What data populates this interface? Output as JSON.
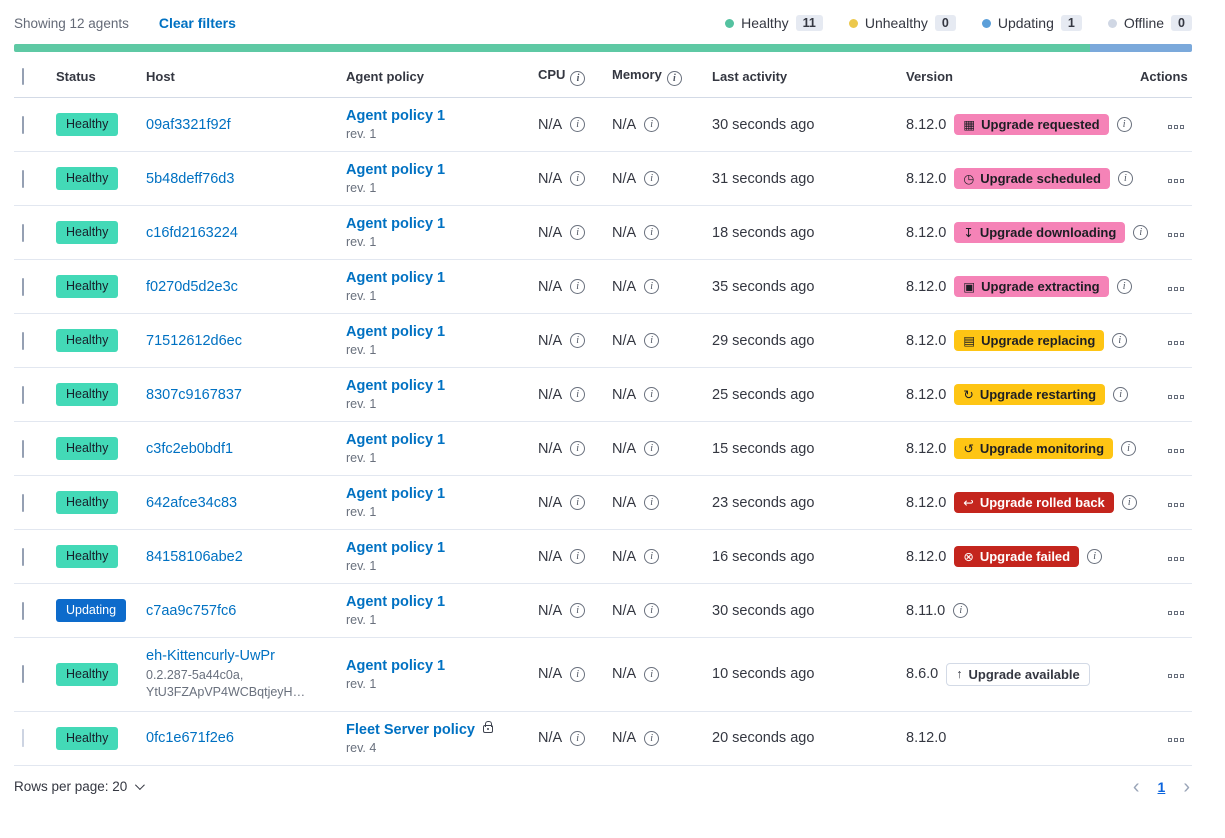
{
  "toolbar": {
    "showing": "Showing 12 agents",
    "clear_filters": "Clear filters",
    "legend": [
      {
        "label": "Healthy",
        "count": "11",
        "color": "#54c2a0"
      },
      {
        "label": "Unhealthy",
        "count": "0",
        "color": "#ecc84c"
      },
      {
        "label": "Updating",
        "count": "1",
        "color": "#5b9fd9"
      },
      {
        "label": "Offline",
        "count": "0",
        "color": "#d0d7e4"
      }
    ]
  },
  "healthbar": {
    "segments": [
      {
        "color": "#5ec9a4",
        "pct": 91.3
      },
      {
        "color": "#7ba9db",
        "pct": 8.7
      }
    ]
  },
  "icons": {
    "calendar": "▦",
    "clock": "◷",
    "download": "↧",
    "package": "▣",
    "document": "▤",
    "refresh": "↻",
    "inspect": "↺",
    "return": "↩",
    "cross": "⊗",
    "up": "↑",
    "info": "i"
  },
  "table": {
    "headers": {
      "status": "Status",
      "host": "Host",
      "policy": "Agent policy",
      "cpu": "CPU",
      "memory": "Memory",
      "last_activity": "Last activity",
      "version": "Version",
      "actions": "Actions"
    },
    "rows": [
      {
        "status": "Healthy",
        "status_type": "healthy",
        "host": "09af3321f92f",
        "policy": "Agent policy 1",
        "policy_rev": "rev. 1",
        "policy_locked": false,
        "cpu": "N/A",
        "memory": "N/A",
        "last_activity": "30 seconds ago",
        "version": "8.12.0",
        "upgrade": {
          "label": "Upgrade requested",
          "type": "pink",
          "icon": "calendar"
        },
        "has_info": true,
        "checkbox_disabled": false
      },
      {
        "status": "Healthy",
        "status_type": "healthy",
        "host": "5b48deff76d3",
        "policy": "Agent policy 1",
        "policy_rev": "rev. 1",
        "policy_locked": false,
        "cpu": "N/A",
        "memory": "N/A",
        "last_activity": "31 seconds ago",
        "version": "8.12.0",
        "upgrade": {
          "label": "Upgrade scheduled",
          "type": "pink",
          "icon": "clock"
        },
        "has_info": true,
        "checkbox_disabled": false
      },
      {
        "status": "Healthy",
        "status_type": "healthy",
        "host": "c16fd2163224",
        "policy": "Agent policy 1",
        "policy_rev": "rev. 1",
        "policy_locked": false,
        "cpu": "N/A",
        "memory": "N/A",
        "last_activity": "18 seconds ago",
        "version": "8.12.0",
        "upgrade": {
          "label": "Upgrade downloading",
          "type": "pink",
          "icon": "download"
        },
        "has_info": true,
        "checkbox_disabled": false
      },
      {
        "status": "Healthy",
        "status_type": "healthy",
        "host": "f0270d5d2e3c",
        "policy": "Agent policy 1",
        "policy_rev": "rev. 1",
        "policy_locked": false,
        "cpu": "N/A",
        "memory": "N/A",
        "last_activity": "35 seconds ago",
        "version": "8.12.0",
        "upgrade": {
          "label": "Upgrade extracting",
          "type": "pink",
          "icon": "package"
        },
        "has_info": true,
        "checkbox_disabled": false
      },
      {
        "status": "Healthy",
        "status_type": "healthy",
        "host": "71512612d6ec",
        "policy": "Agent policy 1",
        "policy_rev": "rev. 1",
        "policy_locked": false,
        "cpu": "N/A",
        "memory": "N/A",
        "last_activity": "29 seconds ago",
        "version": "8.12.0",
        "upgrade": {
          "label": "Upgrade replacing",
          "type": "warning",
          "icon": "document"
        },
        "has_info": true,
        "checkbox_disabled": false
      },
      {
        "status": "Healthy",
        "status_type": "healthy",
        "host": "8307c9167837",
        "policy": "Agent policy 1",
        "policy_rev": "rev. 1",
        "policy_locked": false,
        "cpu": "N/A",
        "memory": "N/A",
        "last_activity": "25 seconds ago",
        "version": "8.12.0",
        "upgrade": {
          "label": "Upgrade restarting",
          "type": "warning",
          "icon": "refresh"
        },
        "has_info": true,
        "checkbox_disabled": false
      },
      {
        "status": "Healthy",
        "status_type": "healthy",
        "host": "c3fc2eb0bdf1",
        "policy": "Agent policy 1",
        "policy_rev": "rev. 1",
        "policy_locked": false,
        "cpu": "N/A",
        "memory": "N/A",
        "last_activity": "15 seconds ago",
        "version": "8.12.0",
        "upgrade": {
          "label": "Upgrade monitoring",
          "type": "warning",
          "icon": "inspect"
        },
        "has_info": true,
        "checkbox_disabled": false
      },
      {
        "status": "Healthy",
        "status_type": "healthy",
        "host": "642afce34c83",
        "policy": "Agent policy 1",
        "policy_rev": "rev. 1",
        "policy_locked": false,
        "cpu": "N/A",
        "memory": "N/A",
        "last_activity": "23 seconds ago",
        "version": "8.12.0",
        "upgrade": {
          "label": "Upgrade rolled back",
          "type": "danger",
          "icon": "return"
        },
        "has_info": true,
        "checkbox_disabled": false
      },
      {
        "status": "Healthy",
        "status_type": "healthy",
        "host": "84158106abe2",
        "policy": "Agent policy 1",
        "policy_rev": "rev. 1",
        "policy_locked": false,
        "cpu": "N/A",
        "memory": "N/A",
        "last_activity": "16 seconds ago",
        "version": "8.12.0",
        "upgrade": {
          "label": "Upgrade failed",
          "type": "danger",
          "icon": "cross"
        },
        "has_info": true,
        "checkbox_disabled": false
      },
      {
        "status": "Updating",
        "status_type": "updating",
        "host": "c7aa9c757fc6",
        "policy": "Agent policy 1",
        "policy_rev": "rev. 1",
        "policy_locked": false,
        "cpu": "N/A",
        "memory": "N/A",
        "last_activity": "30 seconds ago",
        "version": "8.11.0",
        "upgrade": null,
        "has_info": true,
        "checkbox_disabled": false
      },
      {
        "status": "Healthy",
        "status_type": "healthy",
        "host": "eh-Kittencurly-UwPr",
        "host_sub": [
          "0.2.287-5a44c0a,",
          "YtU3FZApVP4WCBqtjeyH…"
        ],
        "policy": "Agent policy 1",
        "policy_rev": "rev. 1",
        "policy_locked": false,
        "cpu": "N/A",
        "memory": "N/A",
        "last_activity": "10 seconds ago",
        "version": "8.6.0",
        "upgrade": {
          "label": "Upgrade available",
          "type": "hollow",
          "icon": "up"
        },
        "has_info": false,
        "checkbox_disabled": false
      },
      {
        "status": "Healthy",
        "status_type": "healthy",
        "host": "0fc1e671f2e6",
        "policy": "Fleet Server policy",
        "policy_rev": "rev. 4",
        "policy_locked": true,
        "cpu": "N/A",
        "memory": "N/A",
        "last_activity": "20 seconds ago",
        "version": "8.12.0",
        "upgrade": null,
        "has_info": false,
        "checkbox_disabled": true
      }
    ]
  },
  "footer": {
    "rows_per_page": "Rows per page: 20",
    "prev": "‹",
    "page": "1",
    "next": "›"
  }
}
